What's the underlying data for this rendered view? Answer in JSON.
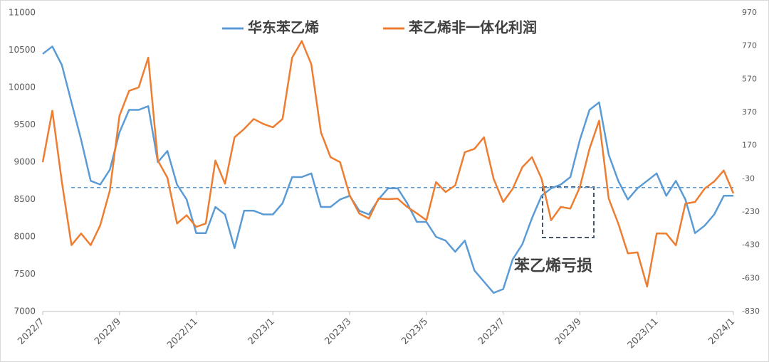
{
  "chart_data": {
    "type": "line",
    "categories": [
      "2022/7",
      null,
      null,
      null,
      null,
      null,
      null,
      null,
      "2022/9",
      null,
      null,
      null,
      null,
      null,
      null,
      null,
      "2022/11",
      null,
      null,
      null,
      null,
      null,
      null,
      null,
      "2023/1",
      null,
      null,
      null,
      null,
      null,
      null,
      null,
      "2023/3",
      null,
      null,
      null,
      null,
      null,
      null,
      null,
      "2023/5",
      null,
      null,
      null,
      null,
      null,
      null,
      null,
      "2023/7",
      null,
      null,
      null,
      null,
      null,
      null,
      null,
      "2023/9",
      null,
      null,
      null,
      null,
      null,
      null,
      null,
      "2023/11",
      null,
      null,
      null,
      null,
      null,
      null,
      null,
      "2024/1"
    ],
    "series": [
      {
        "name": "华东苯乙烯",
        "color": "#5b9bd5",
        "values": [
          10450,
          10550,
          10300,
          9800,
          9300,
          8750,
          8700,
          8900,
          9400,
          9700,
          9700,
          9750,
          9000,
          9150,
          8700,
          8500,
          8050,
          8050,
          8400,
          8300,
          7850,
          8350,
          8350,
          8300,
          8300,
          8450,
          8800,
          8800,
          8850,
          8400,
          8400,
          8500,
          8550,
          8350,
          8300,
          8500,
          8650,
          8650,
          8450,
          8200,
          8200,
          8000,
          7950,
          7800,
          7950,
          7550,
          7400,
          7250,
          7300,
          7700,
          7900,
          8250,
          8550,
          8650,
          8700,
          8800,
          9300,
          9700,
          9800,
          9100,
          8750,
          8500,
          8650,
          8750,
          8850,
          8550,
          8750,
          8500,
          8050,
          8150,
          8300,
          8550,
          8550
        ]
      },
      {
        "name": "苯乙烯非一体化利润",
        "color": "#ed7d31",
        "axis": "y2",
        "values": [
          70,
          380,
          -50,
          -430,
          -360,
          -430,
          -310,
          -100,
          350,
          500,
          520,
          700,
          80,
          -24,
          -300,
          -250,
          -320,
          -300,
          80,
          -60,
          220,
          270,
          330,
          300,
          280,
          330,
          700,
          800,
          660,
          250,
          100,
          70,
          -130,
          -240,
          -270,
          -150,
          -153,
          -150,
          -200,
          -238,
          -280,
          -50,
          -110,
          -70,
          130,
          150,
          220,
          -30,
          -170,
          -90,
          40,
          100,
          -30,
          -280,
          -200,
          -210,
          -80,
          150,
          320,
          -150,
          -300,
          -480,
          -474,
          -680,
          -360,
          -360,
          -431,
          -180,
          -170,
          -90,
          -46,
          20,
          -118
        ]
      }
    ],
    "ylim": [
      7000,
      11000
    ],
    "yticks": [
      7000,
      7500,
      8000,
      8500,
      9000,
      9500,
      10000,
      10500,
      11000
    ],
    "y2lim": [
      -830,
      970
    ],
    "y2ticks": [
      -830,
      -630,
      -430,
      -230,
      -30,
      170,
      370,
      570,
      770,
      970
    ],
    "hline": 8660,
    "annotation": "苯乙烯亏损"
  }
}
